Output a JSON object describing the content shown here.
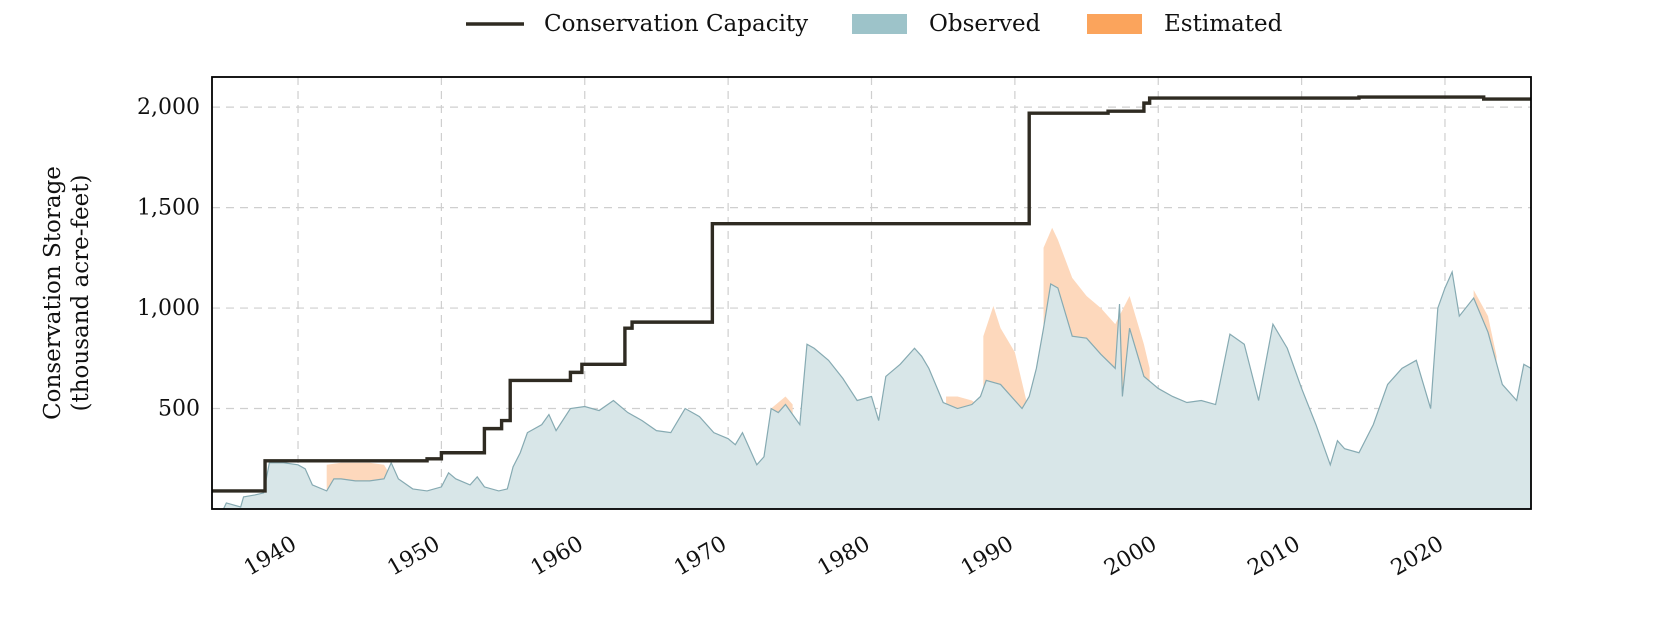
{
  "chart_data": {
    "type": "area",
    "title": "",
    "xlabel": "",
    "ylabel": "Conservation Storage\n(thousand acre-feet)",
    "ylabel_lines": [
      "Conservation Storage",
      "(thousand acre-feet)"
    ],
    "xlim": [
      1934.0,
      2026.0
    ],
    "ylim": [
      0,
      2150
    ],
    "xticks": [
      1940,
      1950,
      1960,
      1970,
      1980,
      1990,
      2000,
      2010,
      2020
    ],
    "xtick_labels": [
      "1940",
      "1950",
      "1960",
      "1970",
      "1980",
      "1990",
      "2000",
      "2010",
      "2020"
    ],
    "yticks": [
      500,
      1000,
      1500,
      2000
    ],
    "ytick_labels": [
      "500",
      "1,000",
      "1,500",
      "2,000"
    ],
    "grid": true,
    "legend_position": "top-center",
    "legend": [
      {
        "label": "Conservation Capacity",
        "kind": "line",
        "color": "#2f2b22"
      },
      {
        "label": "Observed",
        "kind": "patch",
        "color": "#9dc3c9"
      },
      {
        "label": "Estimated",
        "kind": "patch",
        "color": "#fba45c"
      }
    ],
    "colors": {
      "capacity_line": "#2f2b22",
      "observed_fill": "#d8e6e8",
      "observed_line": "#86aab2",
      "estimated_fill": "#fdd8bc",
      "grid": "#cfcfcf",
      "frame": "#000000"
    },
    "series": [
      {
        "name": "Conservation Capacity",
        "type": "step",
        "points": [
          [
            1934.0,
            90
          ],
          [
            1937.7,
            90
          ],
          [
            1937.7,
            240
          ],
          [
            1949.0,
            240
          ],
          [
            1949.0,
            250
          ],
          [
            1950.0,
            250
          ],
          [
            1950.0,
            280
          ],
          [
            1953.0,
            280
          ],
          [
            1953.0,
            400
          ],
          [
            1954.2,
            400
          ],
          [
            1954.2,
            440
          ],
          [
            1954.8,
            440
          ],
          [
            1954.8,
            640
          ],
          [
            1959.0,
            640
          ],
          [
            1959.0,
            680
          ],
          [
            1959.8,
            680
          ],
          [
            1959.8,
            720
          ],
          [
            1962.8,
            720
          ],
          [
            1962.8,
            900
          ],
          [
            1963.3,
            900
          ],
          [
            1963.3,
            930
          ],
          [
            1968.9,
            930
          ],
          [
            1968.9,
            1420
          ],
          [
            1991.0,
            1420
          ],
          [
            1991.0,
            1970
          ],
          [
            1996.5,
            1970
          ],
          [
            1996.5,
            1980
          ],
          [
            1999.0,
            1980
          ],
          [
            1999.0,
            2020
          ],
          [
            1999.4,
            2020
          ],
          [
            1999.4,
            2045
          ],
          [
            2014.0,
            2045
          ],
          [
            2014.0,
            2050
          ],
          [
            2022.7,
            2050
          ],
          [
            2022.7,
            2040
          ],
          [
            2026.0,
            2040
          ]
        ]
      },
      {
        "name": "Observed",
        "type": "area",
        "points": [
          [
            1934.0,
            0
          ],
          [
            1934.8,
            0
          ],
          [
            1935.0,
            30
          ],
          [
            1936.0,
            10
          ],
          [
            1936.2,
            60
          ],
          [
            1937.0,
            70
          ],
          [
            1937.6,
            80
          ],
          [
            1938.0,
            230
          ],
          [
            1939.0,
            230
          ],
          [
            1940.0,
            220
          ],
          [
            1940.5,
            200
          ],
          [
            1941.0,
            120
          ],
          [
            1942.0,
            90
          ],
          [
            1942.5,
            150
          ],
          [
            1943.0,
            150
          ],
          [
            1944.0,
            140
          ],
          [
            1945.0,
            140
          ],
          [
            1946.0,
            150
          ],
          [
            1946.5,
            230
          ],
          [
            1947.0,
            150
          ],
          [
            1948.0,
            100
          ],
          [
            1949.0,
            90
          ],
          [
            1950.0,
            110
          ],
          [
            1950.5,
            180
          ],
          [
            1951.0,
            150
          ],
          [
            1952.0,
            120
          ],
          [
            1952.5,
            160
          ],
          [
            1953.0,
            110
          ],
          [
            1954.0,
            90
          ],
          [
            1954.6,
            100
          ],
          [
            1955.0,
            210
          ],
          [
            1955.5,
            280
          ],
          [
            1956.0,
            380
          ],
          [
            1957.0,
            420
          ],
          [
            1957.5,
            470
          ],
          [
            1958.0,
            390
          ],
          [
            1959.0,
            500
          ],
          [
            1960.0,
            510
          ],
          [
            1961.0,
            490
          ],
          [
            1962.0,
            540
          ],
          [
            1963.0,
            480
          ],
          [
            1964.0,
            440
          ],
          [
            1965.0,
            390
          ],
          [
            1966.0,
            380
          ],
          [
            1967.0,
            500
          ],
          [
            1968.0,
            460
          ],
          [
            1969.0,
            380
          ],
          [
            1970.0,
            350
          ],
          [
            1970.5,
            320
          ],
          [
            1971.0,
            380
          ],
          [
            1972.0,
            220
          ],
          [
            1972.5,
            260
          ],
          [
            1973.0,
            500
          ],
          [
            1973.5,
            480
          ],
          [
            1974.0,
            520
          ],
          [
            1975.0,
            420
          ],
          [
            1975.5,
            820
          ],
          [
            1976.0,
            800
          ],
          [
            1977.0,
            740
          ],
          [
            1978.0,
            650
          ],
          [
            1979.0,
            540
          ],
          [
            1980.0,
            560
          ],
          [
            1980.5,
            440
          ],
          [
            1981.0,
            660
          ],
          [
            1982.0,
            720
          ],
          [
            1983.0,
            800
          ],
          [
            1983.5,
            760
          ],
          [
            1984.0,
            700
          ],
          [
            1985.0,
            530
          ],
          [
            1986.0,
            500
          ],
          [
            1987.0,
            520
          ],
          [
            1987.6,
            560
          ],
          [
            1988.0,
            640
          ],
          [
            1989.0,
            620
          ],
          [
            1990.0,
            540
          ],
          [
            1990.5,
            500
          ],
          [
            1991.0,
            560
          ],
          [
            1991.5,
            700
          ],
          [
            1992.0,
            900
          ],
          [
            1992.5,
            1120
          ],
          [
            1993.0,
            1100
          ],
          [
            1994.0,
            860
          ],
          [
            1995.0,
            850
          ],
          [
            1996.0,
            770
          ],
          [
            1997.0,
            700
          ],
          [
            1997.3,
            1020
          ],
          [
            1997.5,
            560
          ],
          [
            1998.0,
            900
          ],
          [
            1999.0,
            660
          ],
          [
            2000.0,
            600
          ],
          [
            2001.0,
            560
          ],
          [
            2002.0,
            530
          ],
          [
            2003.0,
            540
          ],
          [
            2004.0,
            520
          ],
          [
            2005.0,
            870
          ],
          [
            2006.0,
            820
          ],
          [
            2007.0,
            540
          ],
          [
            2008.0,
            920
          ],
          [
            2009.0,
            800
          ],
          [
            2010.0,
            600
          ],
          [
            2011.0,
            420
          ],
          [
            2012.0,
            220
          ],
          [
            2012.5,
            340
          ],
          [
            2013.0,
            300
          ],
          [
            2014.0,
            280
          ],
          [
            2015.0,
            420
          ],
          [
            2016.0,
            620
          ],
          [
            2017.0,
            700
          ],
          [
            2018.0,
            740
          ],
          [
            2019.0,
            500
          ],
          [
            2019.5,
            1000
          ],
          [
            2020.0,
            1100
          ],
          [
            2020.5,
            1180
          ],
          [
            2021.0,
            960
          ],
          [
            2022.0,
            1050
          ],
          [
            2023.0,
            880
          ],
          [
            2024.0,
            620
          ],
          [
            2025.0,
            540
          ],
          [
            2025.5,
            720
          ],
          [
            2026.0,
            700
          ]
        ]
      },
      {
        "name": "Estimated",
        "type": "area",
        "segments": [
          {
            "x": [
              1942.0,
              1943.0,
              1945.0,
              1946.0,
              1946.5
            ],
            "y": [
              220,
              230,
              230,
              220,
              160
            ]
          },
          {
            "x": [
              1973.0,
              1973.5,
              1974.0,
              1974.5
            ],
            "y": [
              500,
              530,
              560,
              520
            ]
          },
          {
            "x": [
              1985.2,
              1986.0,
              1987.0,
              1987.8
            ],
            "y": [
              560,
              560,
              540,
              500
            ]
          },
          {
            "x": [
              1987.8,
              1988.5,
              1989.0,
              1990.0,
              1990.8,
              1991.0
            ],
            "y": [
              860,
              1010,
              900,
              780,
              540,
              560
            ]
          },
          {
            "x": [
              1992.0,
              1992.6,
              1993.0,
              1994.0,
              1995.0,
              1996.0,
              1997.0,
              1998.0,
              1999.0,
              1999.4
            ],
            "y": [
              1300,
              1400,
              1340,
              1150,
              1060,
              1000,
              920,
              1060,
              820,
              700
            ]
          },
          {
            "x": [
              2022.0,
              2023.0,
              2023.6
            ],
            "y": [
              1090,
              960,
              760
            ]
          }
        ]
      }
    ]
  }
}
